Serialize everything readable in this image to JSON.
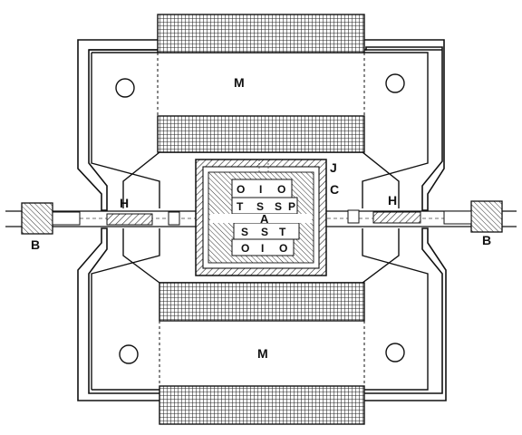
{
  "figure": {
    "labels": {
      "magnet_top": "M",
      "magnet_bottom": "M",
      "bar_left": "B",
      "bar_right": "B",
      "holder_left": "H",
      "holder_right": "H",
      "center": "A",
      "jacket": "J",
      "case": "C"
    },
    "upper_block": {
      "left": "O",
      "middle": "I",
      "right": "O",
      "row2_left": "T",
      "row2_s1": "S",
      "row2_s2": "S",
      "row2_right": "P"
    },
    "lower_block": {
      "row1_left": "S",
      "row1_s1": "S",
      "row1_right": "T",
      "row2_left": "O",
      "row2_middle": "I",
      "row2_right": "O"
    }
  }
}
